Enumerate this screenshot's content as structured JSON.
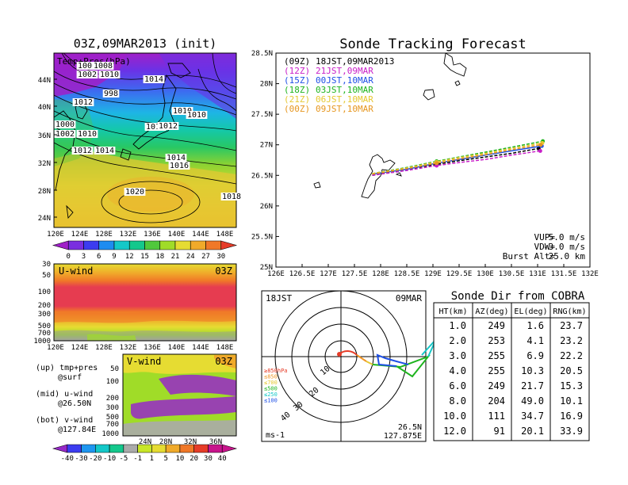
{
  "left_map": {
    "title": "03Z,09MAR2013 (init)",
    "label": "Temp+Pres(hPa)",
    "lat_ticks": [
      "44N",
      "40N",
      "36N",
      "32N",
      "28N",
      "24N"
    ],
    "lon_ticks": [
      "120E",
      "124E",
      "128E",
      "132E",
      "136E",
      "140E",
      "144E",
      "148E"
    ],
    "isobar_labels": [
      "1006",
      "1008",
      "1002",
      "1010",
      "1014",
      "998",
      "1012",
      "1010",
      "1010",
      "1000",
      "1002",
      "1010",
      "1014",
      "1012",
      "1012",
      "1014",
      "1014",
      "1016",
      "1020",
      "1018"
    ],
    "colorbar_ticks": [
      "0",
      "3",
      "6",
      "9",
      "12",
      "15",
      "18",
      "21",
      "24",
      "27",
      "30"
    ],
    "colorbar_colors": [
      "#a020c8",
      "#7a2ee0",
      "#3c3cf0",
      "#1e8cf0",
      "#14c8c8",
      "#14c88c",
      "#50c83c",
      "#a0dc28",
      "#e6dc32",
      "#f0aa2a",
      "#f07828",
      "#e63c28"
    ]
  },
  "uwind": {
    "label": "U-wind",
    "time": "03Z",
    "y_ticks": [
      "30",
      "50",
      "100",
      "200",
      "300",
      "500",
      "700",
      "1000"
    ],
    "x_ticks": [
      "120E",
      "124E",
      "128E",
      "132E",
      "136E",
      "140E",
      "144E",
      "148E"
    ]
  },
  "vwind": {
    "label": "V-wind",
    "time": "03Z",
    "y_ticks": [
      "50",
      "100",
      "200",
      "300",
      "500",
      "700",
      "1000"
    ],
    "x_ticks": [
      "24N",
      "28N",
      "32N",
      "36N"
    ]
  },
  "legend_notes": [
    "(up) tmp+pres",
    "@surf",
    "(mid) u-wind",
    "@26.50N",
    "(bot) v-wind",
    "@127.84E"
  ],
  "wind_colorbar": {
    "ticks": [
      "-40",
      "-30",
      "-20",
      "-10",
      "-5",
      "-1",
      "1",
      "5",
      "10",
      "20",
      "30",
      "40"
    ],
    "colors": [
      "#9628c8",
      "#3c3cf0",
      "#1e96f0",
      "#14c8c8",
      "#14c88c",
      "#aaaaaa",
      "#c8e628",
      "#e6dc32",
      "#f0aa2a",
      "#f07828",
      "#e63c28",
      "#c8148c"
    ]
  },
  "tracking": {
    "title": "Sonde Tracking Forecast",
    "y_ticks": [
      "28.5N",
      "28N",
      "27.5N",
      "27N",
      "26.5N",
      "26N",
      "25.5N",
      "25N"
    ],
    "x_ticks": [
      "126E",
      "126.5E",
      "127E",
      "127.5E",
      "128E",
      "128.5E",
      "129E",
      "129.5E",
      "130E",
      "130.5E",
      "131E",
      "131.5E",
      "132E"
    ],
    "legend": [
      {
        "code": "(09Z)",
        "text": "18JST,09MAR2013",
        "color": "#000000"
      },
      {
        "code": "(12Z)",
        "text": "21JST,09MAR",
        "color": "#c81ec8"
      },
      {
        "code": "(15Z)",
        "text": "00JST,10MAR",
        "color": "#1e50e6"
      },
      {
        "code": "(18Z)",
        "text": "03JST,10MAR",
        "color": "#1eb41e"
      },
      {
        "code": "(21Z)",
        "text": "06JST,10MAR",
        "color": "#e6c832"
      },
      {
        "code": "(00Z)",
        "text": "09JST,10MAR",
        "color": "#e6961e"
      }
    ],
    "params": [
      {
        "name": "VUP=",
        "value": "5.0  m/s"
      },
      {
        "name": "VDW=",
        "value": "-3.0  m/s"
      },
      {
        "name": "Burst Alt=",
        "value": "25.0  km"
      }
    ]
  },
  "chart_data": {
    "type": "line",
    "title": "Sonde Tracking Forecast",
    "xlabel": "",
    "ylabel": "",
    "xlim": [
      126,
      132
    ],
    "ylim": [
      25,
      28.5
    ],
    "series": [
      {
        "name": "(09Z) 18JST,09MAR2013",
        "points": [
          [
            127.84,
            26.5
          ],
          [
            128.5,
            26.6
          ],
          [
            129.07,
            26.68
          ],
          [
            129.5,
            26.74
          ],
          [
            130,
            26.8
          ],
          [
            130.5,
            26.86
          ],
          [
            131.02,
            26.94
          ]
        ]
      },
      {
        "name": "(12Z) 21JST,09MAR",
        "points": [
          [
            127.84,
            26.5
          ],
          [
            128.5,
            26.58
          ],
          [
            129.07,
            26.66
          ],
          [
            129.5,
            26.71
          ],
          [
            130,
            26.76
          ],
          [
            130.5,
            26.83
          ],
          [
            131.05,
            26.9
          ]
        ]
      },
      {
        "name": "(15Z) 00JST,10MAR",
        "points": [
          [
            127.84,
            26.52
          ],
          [
            128.5,
            26.6
          ],
          [
            129.07,
            26.7
          ],
          [
            129.5,
            26.76
          ],
          [
            130,
            26.83
          ],
          [
            130.5,
            26.9
          ],
          [
            131.08,
            26.98
          ]
        ]
      },
      {
        "name": "(18Z) 03JST,10MAR",
        "points": [
          [
            127.84,
            26.53
          ],
          [
            128.5,
            26.63
          ],
          [
            129.07,
            26.73
          ],
          [
            129.5,
            26.8
          ],
          [
            130,
            26.88
          ],
          [
            130.5,
            26.96
          ],
          [
            131.1,
            27.06
          ]
        ]
      },
      {
        "name": "(21Z) 06JST,10MAR",
        "points": [
          [
            127.84,
            26.53
          ],
          [
            128.5,
            26.62
          ],
          [
            129.07,
            26.72
          ],
          [
            129.5,
            26.79
          ],
          [
            130,
            26.86
          ],
          [
            130.5,
            26.94
          ],
          [
            131.09,
            27.03
          ]
        ]
      },
      {
        "name": "(00Z) 09JST,10MAR",
        "points": [
          [
            127.84,
            26.52
          ],
          [
            128.5,
            26.61
          ],
          [
            129.07,
            26.7
          ],
          [
            129.5,
            26.77
          ],
          [
            130,
            26.84
          ],
          [
            130.5,
            26.92
          ],
          [
            131.06,
            27.0
          ]
        ]
      }
    ]
  },
  "polar": {
    "time_label": "18JST",
    "date_label": "09MAR",
    "range_labels": [
      "10",
      "20",
      "30",
      "40"
    ],
    "level_legend": [
      {
        "text": "≥850hPa",
        "color": "#e63c28"
      },
      {
        "text": "≤850",
        "color": "#f09628"
      },
      {
        "text": "≤700",
        "color": "#e6c832"
      },
      {
        "text": "≤500",
        "color": "#1eb41e"
      },
      {
        "text": "≤250",
        "color": "#14c8c8"
      },
      {
        "text": "≤100",
        "color": "#1e50e6"
      }
    ],
    "unit": "ms-1",
    "loc_lat": "26.5N",
    "loc_lon": "127.875E"
  },
  "cobra": {
    "title": "Sonde Dir from COBRA",
    "headers": [
      "HT(km)",
      "AZ(deg)",
      "EL(deg)",
      "RNG(km)"
    ],
    "rows": [
      [
        "1.0",
        "249",
        "1.6",
        "23.7"
      ],
      [
        "2.0",
        "253",
        "4.1",
        "23.2"
      ],
      [
        "3.0",
        "255",
        "6.9",
        "22.2"
      ],
      [
        "4.0",
        "255",
        "10.3",
        "20.5"
      ],
      [
        "6.0",
        "249",
        "21.7",
        "15.3"
      ],
      [
        "8.0",
        "204",
        "49.0",
        "10.1"
      ],
      [
        "10.0",
        "111",
        "34.7",
        "16.9"
      ],
      [
        "12.0",
        "91",
        "20.1",
        "33.9"
      ]
    ]
  }
}
